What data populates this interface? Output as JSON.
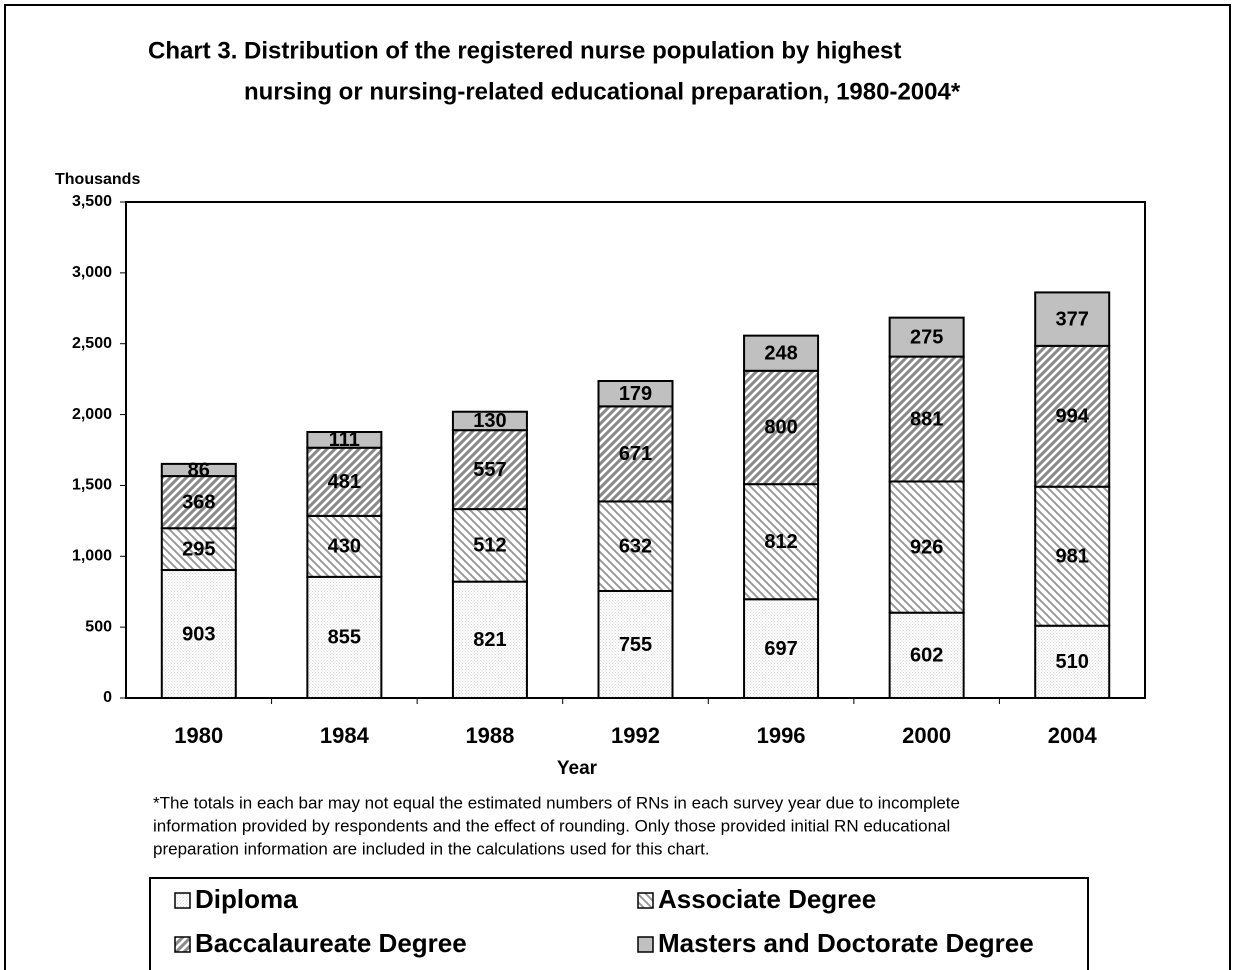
{
  "chart_data": {
    "type": "bar",
    "stacked": true,
    "title": [
      "Chart 3.  Distribution of the registered nurse population by highest",
      "nursing or nursing-related educational preparation, 1980-2004*"
    ],
    "y_label": "Thousands",
    "x_label": "Year",
    "footnote": [
      "*The totals in each bar may not equal the estimated numbers of RNs in each survey year due to  incomplete",
      "information provided by respondents and the effect of rounding.  Only those provided initial RN educational",
      "preparation information are included in the calculations used for this chart."
    ],
    "categories": [
      "1980",
      "1984",
      "1988",
      "1992",
      "1996",
      "2000",
      "2004"
    ],
    "series": [
      {
        "name": "Diploma",
        "color": "#d8d8d8",
        "pattern": "dots",
        "values": [
          903,
          855,
          821,
          755,
          697,
          602,
          510
        ]
      },
      {
        "name": "Associate Degree",
        "color": "#9a9a9a",
        "pattern": "back-diagonal",
        "values": [
          295,
          430,
          512,
          632,
          812,
          926,
          981
        ]
      },
      {
        "name": "Baccalaureate Degree",
        "color": "#8a8a8a",
        "pattern": "diagonal",
        "values": [
          368,
          481,
          557,
          671,
          800,
          881,
          994
        ]
      },
      {
        "name": "Masters and Doctorate Degree",
        "color": "#c0c0c0",
        "pattern": "solid",
        "values": [
          86,
          111,
          130,
          179,
          248,
          275,
          377
        ]
      }
    ],
    "ylim": [
      0,
      3500
    ],
    "yticks": [
      0,
      500,
      {
        "value": 1000,
        "label": "1,000"
      },
      {
        "value": 1500,
        "label": "1,500"
      },
      {
        "value": 2000,
        "label": "2,000"
      },
      {
        "value": 2500,
        "label": "2,500"
      },
      {
        "value": 3000,
        "label": "3,000"
      },
      {
        "value": 3500,
        "label": "3,500"
      }
    ],
    "grid": false,
    "legend": "bottom"
  }
}
